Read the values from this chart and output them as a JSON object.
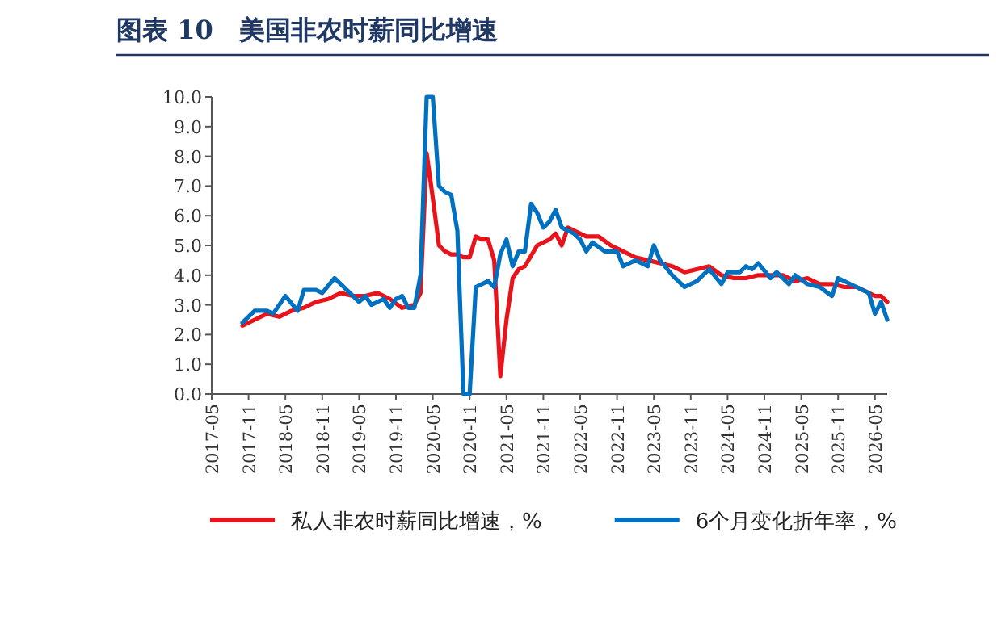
{
  "chart_data": {
    "type": "line",
    "title": "图表 10　美国非农时薪同比增速",
    "xlim": [
      "2017-05",
      "2026-07"
    ],
    "xticks": [
      "2017-05",
      "2017-11",
      "2018-05",
      "2018-11",
      "2019-05",
      "2019-11",
      "2020-05",
      "2020-11",
      "2021-05",
      "2021-11",
      "2022-05",
      "2022-11",
      "2023-05",
      "2023-11",
      "2024-05",
      "2024-11",
      "2025-05",
      "2025-11",
      "2026-05"
    ],
    "ylim": [
      0,
      10
    ],
    "yticks": [
      {
        "value": 0,
        "label": "0.0"
      },
      {
        "value": 1,
        "label": "1.0"
      },
      {
        "value": 2,
        "label": "2.0"
      },
      {
        "value": 3,
        "label": "3.0"
      },
      {
        "value": 4,
        "label": "4.0"
      },
      {
        "value": 5,
        "label": "5.0"
      },
      {
        "value": 6,
        "label": "6.0"
      },
      {
        "value": 7,
        "label": "7.0"
      },
      {
        "value": 8,
        "label": "8.0"
      },
      {
        "value": 9,
        "label": "9.0"
      },
      {
        "value": 10,
        "label": "10.0"
      }
    ],
    "grid": false,
    "legend": "bottom",
    "marker": "none",
    "line_style": "solid",
    "series": [
      {
        "name": "私人非农时薪同比增速，%",
        "color": "#e8141c",
        "x": [
          "2017-10",
          "2017-12",
          "2018-02",
          "2018-04",
          "2018-06",
          "2018-08",
          "2018-10",
          "2018-12",
          "2019-02",
          "2019-04",
          "2019-06",
          "2019-08",
          "2019-10",
          "2019-12",
          "2020-02",
          "2020-03",
          "2020-04",
          "2020-05",
          "2020-06",
          "2020-07",
          "2020-08",
          "2020-09",
          "2020-10",
          "2020-11",
          "2020-12",
          "2021-01",
          "2021-02",
          "2021-03",
          "2021-04",
          "2021-05",
          "2021-06",
          "2021-07",
          "2021-08",
          "2021-10",
          "2021-12",
          "2022-01",
          "2022-02",
          "2022-03",
          "2022-04",
          "2022-06",
          "2022-08",
          "2022-10",
          "2022-12",
          "2023-02",
          "2023-04",
          "2023-06",
          "2023-08",
          "2023-10",
          "2023-12",
          "2024-02",
          "2024-04",
          "2024-06",
          "2024-08",
          "2024-10",
          "2024-12",
          "2025-02",
          "2025-04",
          "2025-06",
          "2025-08",
          "2025-10",
          "2025-12",
          "2026-02",
          "2026-04",
          "2026-05",
          "2026-06",
          "2026-07"
        ],
        "values": [
          2.3,
          2.5,
          2.7,
          2.6,
          2.8,
          2.9,
          3.1,
          3.2,
          3.4,
          3.3,
          3.3,
          3.4,
          3.2,
          2.9,
          3.0,
          3.4,
          8.1,
          6.6,
          5.0,
          4.8,
          4.7,
          4.7,
          4.6,
          4.6,
          5.3,
          5.2,
          5.2,
          4.5,
          0.6,
          2.5,
          3.9,
          4.2,
          4.3,
          5.0,
          5.2,
          5.4,
          5.0,
          5.6,
          5.5,
          5.3,
          5.3,
          5.0,
          4.8,
          4.6,
          4.5,
          4.4,
          4.3,
          4.1,
          4.2,
          4.3,
          4.0,
          3.9,
          3.9,
          4.0,
          4.0,
          4.0,
          3.8,
          3.9,
          3.7,
          3.7,
          3.6,
          3.6,
          3.4,
          3.3,
          3.3,
          3.1
        ]
      },
      {
        "name": "6个月变化折年率，%",
        "color": "#0070c0",
        "x": [
          "2017-10",
          "2017-12",
          "2018-02",
          "2018-03",
          "2018-05",
          "2018-07",
          "2018-08",
          "2018-10",
          "2018-11",
          "2019-01",
          "2019-03",
          "2019-05",
          "2019-06",
          "2019-07",
          "2019-09",
          "2019-10",
          "2019-11",
          "2019-12",
          "2020-01",
          "2020-02",
          "2020-03",
          "2020-04",
          "2020-05",
          "2020-06",
          "2020-07",
          "2020-08",
          "2020-09",
          "2020-10",
          "2020-11",
          "2020-12",
          "2021-01",
          "2021-02",
          "2021-03",
          "2021-04",
          "2021-05",
          "2021-06",
          "2021-07",
          "2021-08",
          "2021-09",
          "2021-10",
          "2021-11",
          "2021-12",
          "2022-01",
          "2022-02",
          "2022-03",
          "2022-04",
          "2022-05",
          "2022-06",
          "2022-07",
          "2022-09",
          "2022-11",
          "2022-12",
          "2023-02",
          "2023-04",
          "2023-05",
          "2023-06",
          "2023-08",
          "2023-10",
          "2023-12",
          "2024-02",
          "2024-04",
          "2024-05",
          "2024-07",
          "2024-08",
          "2024-09",
          "2024-10",
          "2024-12",
          "2025-01",
          "2025-03",
          "2025-04",
          "2025-06",
          "2025-08",
          "2025-10",
          "2025-11",
          "2026-02",
          "2026-04",
          "2026-05",
          "2026-06",
          "2026-07"
        ],
        "values": [
          2.4,
          2.8,
          2.8,
          2.7,
          3.3,
          2.8,
          3.5,
          3.5,
          3.4,
          3.9,
          3.5,
          3.1,
          3.3,
          3.0,
          3.2,
          2.9,
          3.2,
          3.3,
          2.9,
          2.9,
          4.0,
          10,
          10,
          7.0,
          6.8,
          6.7,
          5.5,
          0,
          0,
          3.6,
          3.7,
          3.8,
          3.6,
          4.7,
          5.2,
          4.3,
          4.8,
          4.8,
          6.4,
          6.1,
          5.6,
          5.8,
          6.2,
          5.6,
          5.5,
          5.4,
          5.2,
          4.8,
          5.1,
          4.8,
          4.8,
          4.3,
          4.5,
          4.3,
          5.0,
          4.5,
          4.0,
          3.6,
          3.8,
          4.2,
          3.7,
          4.1,
          4.1,
          4.3,
          4.2,
          4.4,
          3.9,
          4.1,
          3.7,
          4.0,
          3.7,
          3.6,
          3.3,
          3.9,
          3.6,
          3.4,
          2.7,
          3.1,
          2.5
        ]
      }
    ]
  }
}
